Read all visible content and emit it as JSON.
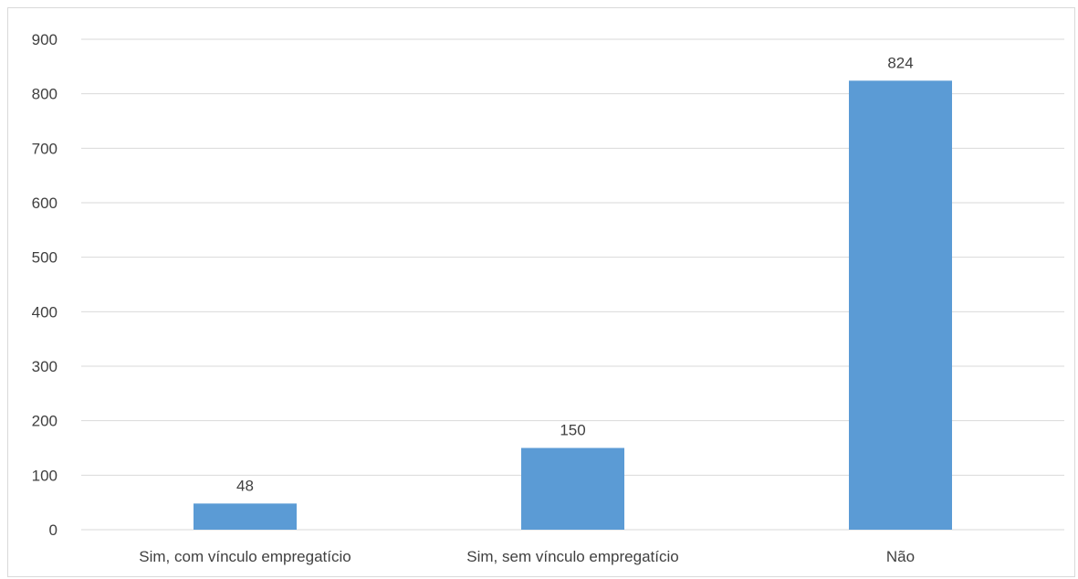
{
  "chart_data": {
    "type": "bar",
    "categories": [
      "Sim, com vínculo empregatício",
      "Sim, sem vínculo empregatício",
      "Não"
    ],
    "values": [
      48,
      150,
      824
    ],
    "data_labels": [
      "48",
      "150",
      "824"
    ],
    "title": "",
    "xlabel": "",
    "ylabel": "",
    "ylim": [
      0,
      900
    ],
    "yticks": [
      0,
      100,
      200,
      300,
      400,
      500,
      600,
      700,
      800,
      900
    ],
    "ytick_labels": [
      "0",
      "100",
      "200",
      "300",
      "400",
      "500",
      "600",
      "700",
      "800",
      "900"
    ],
    "grid": true,
    "legend": "none",
    "colors": {
      "bar": "#5b9bd5",
      "grid": "#d9d9d9",
      "text": "#404040",
      "border": "#d9d9d9"
    }
  }
}
